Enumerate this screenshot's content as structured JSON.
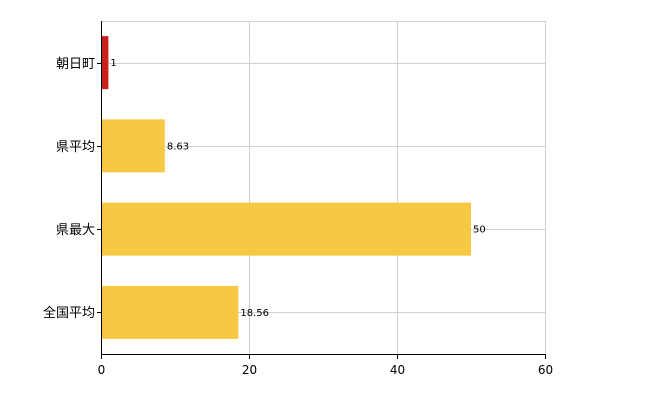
{
  "chart_data": {
    "type": "bar",
    "orientation": "horizontal",
    "categories": [
      "朝日町",
      "県平均",
      "県最大",
      "全国平均"
    ],
    "values": [
      1,
      8.63,
      50,
      18.56
    ],
    "data_labels": [
      "1",
      "8.63",
      "50",
      "18.56"
    ],
    "bar_colors": [
      "#c8201a",
      "#f7c842",
      "#f7c842",
      "#f7c842"
    ],
    "xlim": [
      0,
      60
    ],
    "x_ticks": [
      0,
      20,
      40,
      60
    ],
    "x_tick_labels": [
      "0",
      "20",
      "40",
      "60"
    ],
    "grid": true,
    "legend": "none"
  }
}
